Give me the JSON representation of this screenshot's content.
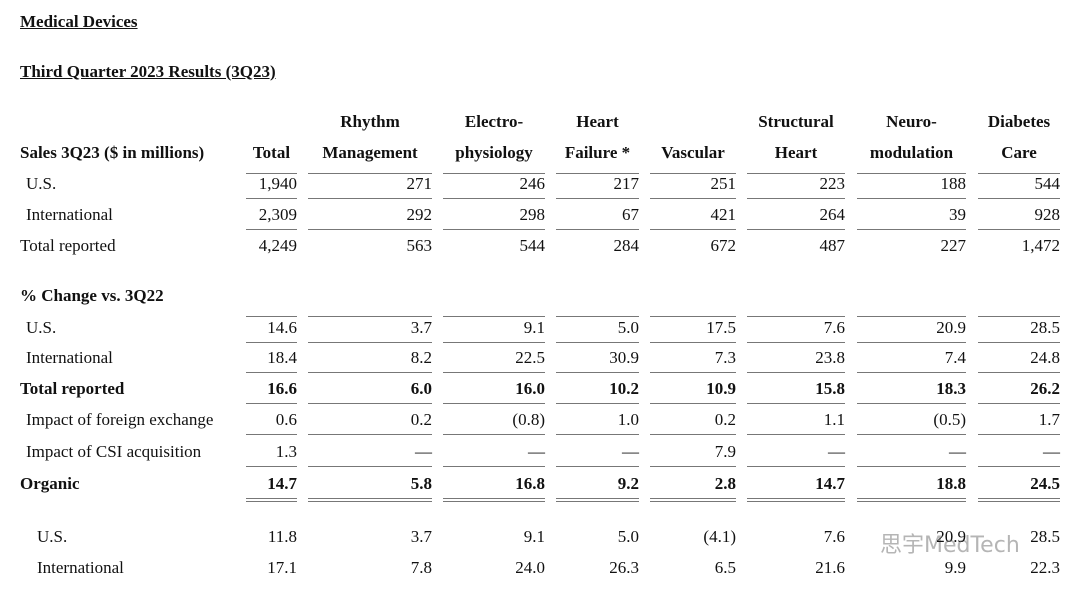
{
  "title": "Medical Devices",
  "subtitle": "Third Quarter 2023 Results (3Q23)",
  "table": {
    "columns": [
      {
        "lines": [
          "Sales 3Q23 ($ in millions)"
        ]
      },
      {
        "lines": [
          "Total"
        ]
      },
      {
        "lines": [
          "Rhythm",
          "Management"
        ]
      },
      {
        "lines": [
          "Electro-",
          "physiology"
        ]
      },
      {
        "lines": [
          "Heart",
          "Failure *"
        ]
      },
      {
        "lines": [
          "Vascular"
        ]
      },
      {
        "lines": [
          "Structural",
          "Heart"
        ]
      },
      {
        "lines": [
          "Neuro-",
          "modulation"
        ]
      },
      {
        "lines": [
          "Diabetes",
          "Care"
        ]
      }
    ],
    "sales_rows": [
      {
        "label": "U.S.",
        "cells": [
          "1,940",
          "271",
          "246",
          "217",
          "251",
          "223",
          "188",
          "544"
        ]
      },
      {
        "label": "International",
        "cells": [
          "2,309",
          "292",
          "298",
          "67",
          "421",
          "264",
          "39",
          "928"
        ]
      },
      {
        "label": "Total reported",
        "cells": [
          "4,249",
          "563",
          "544",
          "284",
          "672",
          "487",
          "227",
          "1,472"
        ]
      }
    ],
    "change_heading": "% Change vs. 3Q22",
    "change_rows": [
      {
        "label": "U.S.",
        "cells": [
          "14.6",
          "3.7",
          "9.1",
          "5.0",
          "17.5",
          "7.6",
          "20.9",
          "28.5"
        ]
      },
      {
        "label": "International",
        "cells": [
          "18.4",
          "8.2",
          "22.5",
          "30.9",
          "7.3",
          "23.8",
          "7.4",
          "24.8"
        ]
      },
      {
        "label": "Total reported",
        "bold": true,
        "cells": [
          "16.6",
          "6.0",
          "16.0",
          "10.2",
          "10.9",
          "15.8",
          "18.3",
          "26.2"
        ]
      },
      {
        "label": "Impact of foreign exchange",
        "cells": [
          "0.6",
          "0.2",
          "(0.8)",
          "1.0",
          "0.2",
          "1.1",
          "(0.5)",
          "1.7"
        ]
      },
      {
        "label": "Impact of CSI acquisition",
        "cells": [
          "1.3",
          "—",
          "—",
          "—",
          "7.9",
          "—",
          "—",
          "—"
        ]
      },
      {
        "label": "Organic",
        "bold": true,
        "cells": [
          "14.7",
          "5.8",
          "16.8",
          "9.2",
          "2.8",
          "14.7",
          "18.8",
          "24.5"
        ]
      }
    ],
    "organic_rows": [
      {
        "label": "U.S.",
        "cells": [
          "11.8",
          "3.7",
          "9.1",
          "5.0",
          "(4.1)",
          "7.6",
          "20.9",
          "28.5"
        ]
      },
      {
        "label": "International",
        "cells": [
          "17.1",
          "7.8",
          "24.0",
          "26.3",
          "6.5",
          "21.6",
          "9.9",
          "22.3"
        ]
      }
    ]
  },
  "watermark": "思宇MedTech"
}
